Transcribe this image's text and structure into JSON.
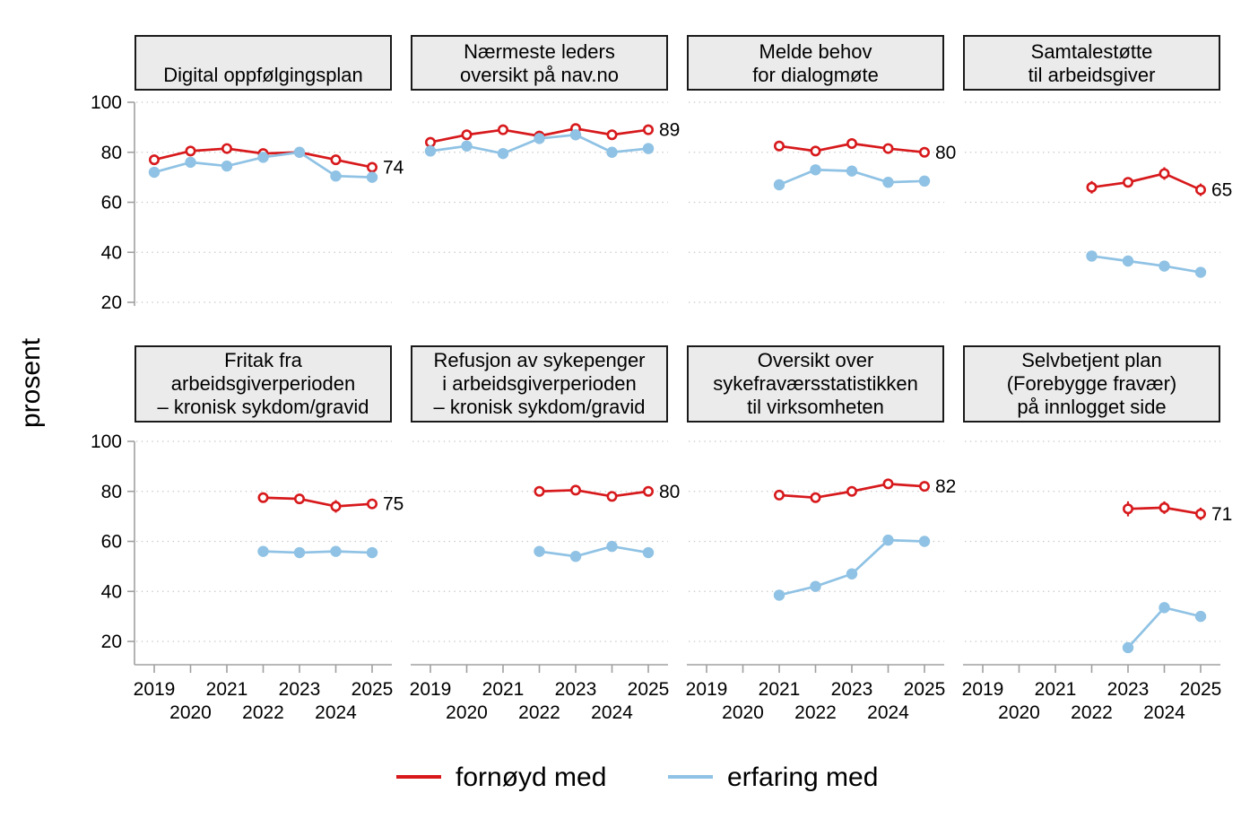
{
  "chart_data": {
    "type": "line",
    "ylabel": "prosent",
    "ylim": [
      20,
      100
    ],
    "yticks": [
      20,
      40,
      60,
      80,
      100
    ],
    "years": [
      2019,
      2020,
      2021,
      2022,
      2023,
      2024,
      2025
    ],
    "grid": "dotted-horizontal",
    "legend_position": "bottom",
    "series_meta": [
      {
        "id": "fornoyd",
        "label": "fornøyd med",
        "color": "#d7191c",
        "marker": "open-circle",
        "error_bars": true
      },
      {
        "id": "erfaring",
        "label": "erfaring med",
        "color": "#8fc2e4",
        "marker": "filled-circle",
        "error_bars": false
      }
    ],
    "panels": [
      {
        "title_lines": [
          "Digital oppfølgingsplan"
        ],
        "end_label": "74",
        "fornoyd": {
          "start_year": 2019,
          "values": [
            77,
            80.5,
            81.5,
            79.5,
            80,
            77,
            74
          ],
          "ci": [
            1.5,
            1.5,
            1.5,
            1.5,
            1.5,
            1.5,
            1.5
          ]
        },
        "erfaring": {
          "start_year": 2019,
          "values": [
            72,
            76,
            74.5,
            78,
            80,
            70.5,
            70
          ]
        }
      },
      {
        "title_lines": [
          "Nærmeste leders",
          "oversikt på nav.no"
        ],
        "end_label": "89",
        "fornoyd": {
          "start_year": 2019,
          "values": [
            84,
            87,
            89,
            86.5,
            89.5,
            87,
            89
          ],
          "ci": [
            1.5,
            1.5,
            1.5,
            1.5,
            1.5,
            1.5,
            1.5
          ]
        },
        "erfaring": {
          "start_year": 2019,
          "values": [
            80.5,
            82.5,
            79.5,
            85.5,
            87,
            80,
            81.5
          ]
        }
      },
      {
        "title_lines": [
          "Melde behov",
          "for dialogmøte"
        ],
        "end_label": "80",
        "fornoyd": {
          "start_year": 2021,
          "values": [
            82.5,
            80.5,
            83.5,
            81.5,
            80
          ],
          "ci": [
            1.5,
            1.5,
            1.5,
            1.5,
            1.5
          ]
        },
        "erfaring": {
          "start_year": 2021,
          "values": [
            67,
            73,
            72.5,
            68,
            68.5
          ]
        }
      },
      {
        "title_lines": [
          "Samtalestøtte",
          "til arbeidsgiver"
        ],
        "end_label": "65",
        "fornoyd": {
          "start_year": 2022,
          "values": [
            66,
            68,
            71.5,
            65
          ],
          "ci": [
            2.5,
            2,
            2.5,
            2.5
          ]
        },
        "erfaring": {
          "start_year": 2022,
          "values": [
            38.5,
            36.5,
            34.5,
            32
          ]
        }
      },
      {
        "title_lines": [
          "Fritak fra",
          "arbeidsgiverperioden",
          "– kronisk sykdom/gravid"
        ],
        "end_label": "75",
        "fornoyd": {
          "start_year": 2022,
          "values": [
            77.5,
            77,
            74,
            75
          ],
          "ci": [
            1.5,
            1.5,
            2.5,
            2
          ]
        },
        "erfaring": {
          "start_year": 2022,
          "values": [
            56,
            55.5,
            56,
            55.5
          ]
        }
      },
      {
        "title_lines": [
          "Refusjon av sykepenger",
          "i arbeidsgiverperioden",
          "– kronisk sykdom/gravid"
        ],
        "end_label": "80",
        "fornoyd": {
          "start_year": 2022,
          "values": [
            80,
            80.5,
            78,
            80
          ],
          "ci": [
            1.5,
            1.5,
            2,
            1.5
          ]
        },
        "erfaring": {
          "start_year": 2022,
          "values": [
            56,
            54,
            58,
            55.5
          ]
        }
      },
      {
        "title_lines": [
          "Oversikt over",
          "sykefraværsstatistikken",
          "til virksomheten"
        ],
        "end_label": "82",
        "fornoyd": {
          "start_year": 2021,
          "values": [
            78.5,
            77.5,
            80,
            83,
            82
          ],
          "ci": [
            2,
            2,
            1.5,
            1.5,
            1.5
          ]
        },
        "erfaring": {
          "start_year": 2021,
          "values": [
            38.5,
            42,
            47,
            60.5,
            60
          ]
        }
      },
      {
        "title_lines": [
          "Selvbetjent plan",
          "(Forebygge fravær)",
          "på innlogget side"
        ],
        "end_label": "71",
        "fornoyd": {
          "start_year": 2023,
          "values": [
            73,
            73.5,
            71
          ],
          "ci": [
            3,
            2.5,
            2.5
          ]
        },
        "erfaring": {
          "start_year": 2023,
          "values": [
            17.5,
            33.5,
            30
          ]
        }
      }
    ]
  },
  "colors": {
    "fornoyd": "#d7191c",
    "erfaring": "#8fc2e4",
    "grid": "#c6c6c6",
    "axis": "#a0a0a0",
    "header_fill": "#ebebeb",
    "header_border": "#1a1a1a",
    "text": "#000000",
    "background": "#ffffff"
  }
}
